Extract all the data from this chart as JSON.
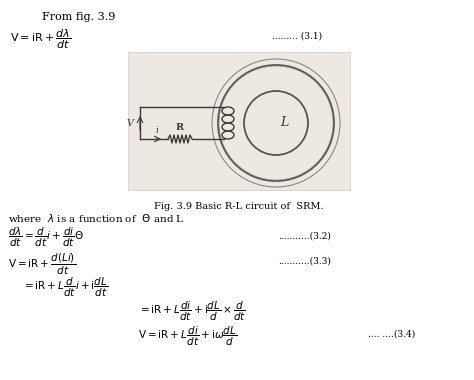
{
  "bg_color": "#ffffff",
  "text_color": "#000000",
  "fig_caption": "Fig. 3.9 Basic R-L circuit of  SRM.",
  "from_text": "From fig. 3.9",
  "eq31_label": "......... (3.1)",
  "eq32_label": "...........(3.2)",
  "eq33_label": "...........(3.3)",
  "eq34_label": ".... ....(3.4)",
  "where_text": "where  λ is a function of  Θ and L",
  "img_bg": "#ede9e0",
  "wire_color": "#3a3a3a",
  "toroid_color": "#555555"
}
